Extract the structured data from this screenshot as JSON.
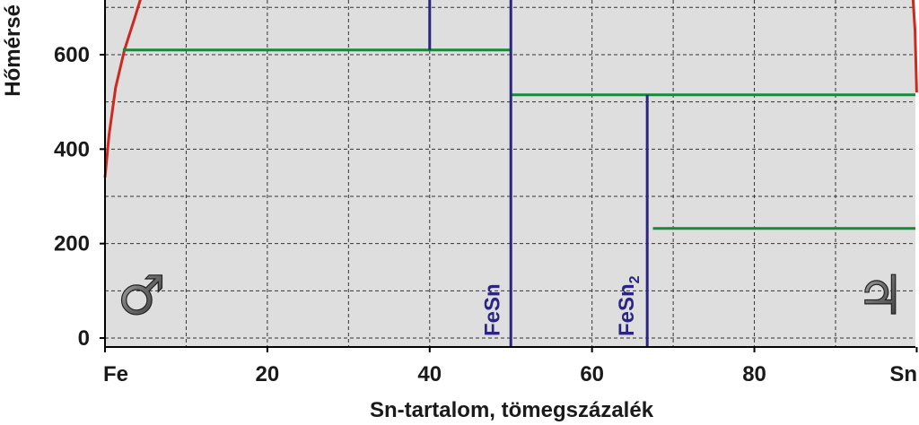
{
  "chart_data": {
    "type": "line",
    "title": "",
    "xlabel": "Sn-tartalom, tömegszázalék",
    "ylabel": "Hőmérsé",
    "xlim": [
      0,
      100
    ],
    "ylim": [
      -20,
      730
    ],
    "x_ticks": [
      {
        "value": 0,
        "label": "Fe"
      },
      {
        "value": 20,
        "label": "20"
      },
      {
        "value": 40,
        "label": "40"
      },
      {
        "value": 60,
        "label": "60"
      },
      {
        "value": 80,
        "label": "80"
      },
      {
        "value": 100,
        "label": "Sn"
      }
    ],
    "y_ticks": [
      {
        "value": 0,
        "label": "0"
      },
      {
        "value": 200,
        "label": "200"
      },
      {
        "value": 400,
        "label": "400"
      },
      {
        "value": 600,
        "label": "600"
      }
    ],
    "grid": true,
    "background_color": "#dedede",
    "colors": {
      "liquidus": "#cc2a1e",
      "isotherm": "#178a3a",
      "compound": "#2a2580"
    },
    "liquidus_curves": [
      {
        "points": [
          [
            0,
            340
          ],
          [
            0.5,
            430
          ],
          [
            1.3,
            530
          ],
          [
            2.4,
            610
          ],
          [
            3.7,
            680
          ],
          [
            4.6,
            730
          ]
        ]
      },
      {
        "points": [
          [
            99.5,
            730
          ],
          [
            99.8,
            650
          ],
          [
            100,
            520
          ]
        ]
      }
    ],
    "isotherms": [
      {
        "x": [
          2.2,
          50.0
        ],
        "y": 610
      },
      {
        "x": [
          50.0,
          100
        ],
        "y": 515
      },
      {
        "x": [
          67.5,
          100
        ],
        "y": 232
      }
    ],
    "vertical_lines": [
      {
        "x": 40.0,
        "y": [
          610,
          730
        ]
      },
      {
        "x": 50.0,
        "y": [
          -20,
          730
        ]
      },
      {
        "x": 66.8,
        "y": [
          -20,
          515
        ]
      }
    ],
    "phase_labels": [
      {
        "text": "FeSn",
        "sub": "",
        "x": 47.5,
        "y": 0
      },
      {
        "text": "FeSn",
        "sub": "2",
        "x": 64.0,
        "y": 0
      }
    ],
    "symbols": [
      {
        "name": "mars-symbol",
        "text": "♂",
        "x": 4.5,
        "y": 85
      },
      {
        "name": "jupiter-symbol",
        "text": "♃",
        "x": 95.5,
        "y": 85
      }
    ]
  }
}
